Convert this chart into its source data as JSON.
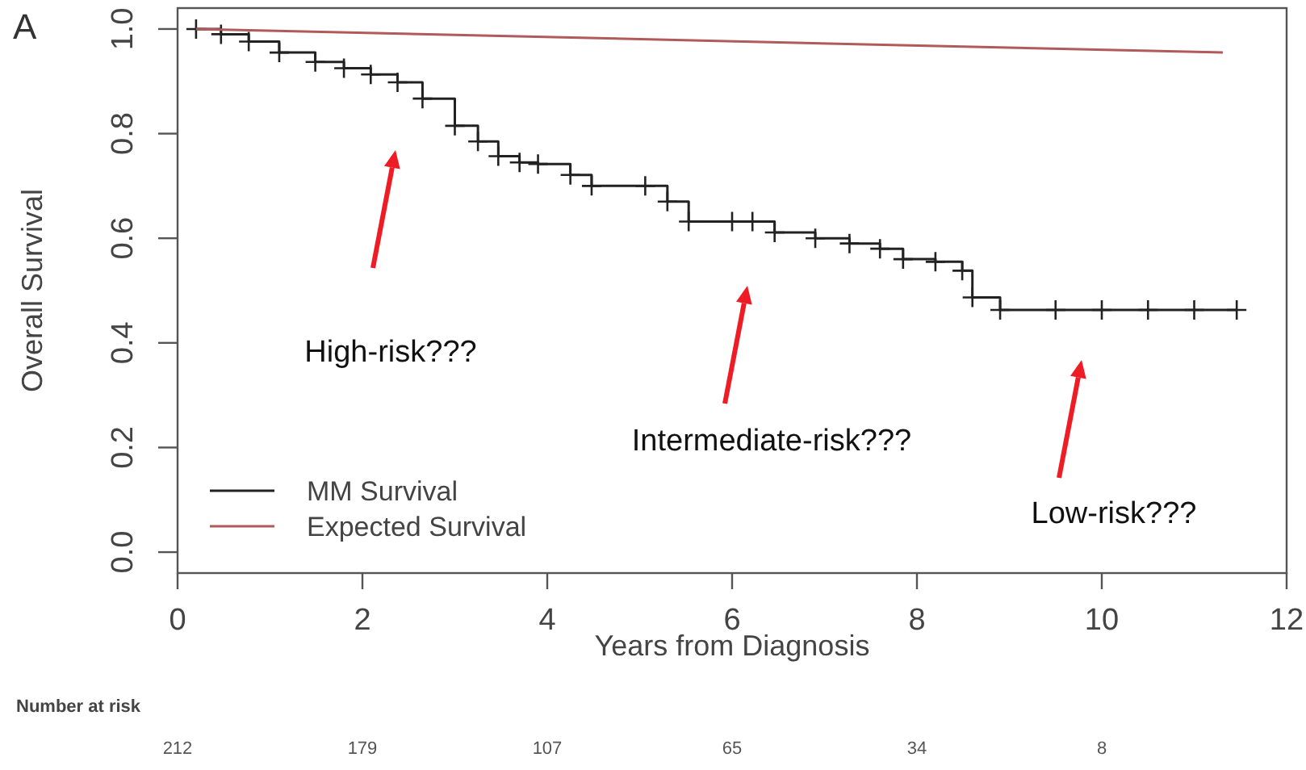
{
  "chart_data": {
    "type": "step",
    "xlabel": "Years from Diagnosis",
    "ylabel": "Overall Survival",
    "xlim": [
      0,
      12
    ],
    "xticks": [
      0,
      2,
      4,
      6,
      8,
      10,
      12
    ],
    "ylim": [
      -0.04,
      1.04
    ],
    "yticks": [
      {
        "value": 0,
        "label": "0.0"
      },
      {
        "value": 0.2,
        "label": "0.2"
      },
      {
        "value": 0.4,
        "label": "0.4"
      },
      {
        "value": 0.6,
        "label": "0.6"
      },
      {
        "value": 0.8,
        "label": "0.8"
      },
      {
        "value": 1,
        "label": "1.0"
      }
    ],
    "grid": false,
    "legend": "bottom left",
    "line_style": "solid",
    "series": [
      {
        "name": "MM Survival",
        "marker": "cross",
        "color": "#222222",
        "x": [
          0.2,
          0.47,
          0.77,
          1.1,
          1.49,
          1.8,
          2.09,
          2.38,
          2.65,
          3.0,
          3.25,
          3.47,
          3.7,
          3.9,
          4.25,
          4.48,
          5.06,
          5.3,
          5.53,
          6.0,
          6.22,
          6.46,
          6.9,
          7.27,
          7.6,
          7.85,
          8.2,
          8.49,
          8.6,
          8.9,
          9.5,
          10.0,
          10.5,
          11.0,
          11.46
        ],
        "values": [
          1.0,
          0.99,
          0.976,
          0.955,
          0.937,
          0.925,
          0.913,
          0.898,
          0.867,
          0.815,
          0.785,
          0.757,
          0.745,
          0.742,
          0.721,
          0.7,
          0.7,
          0.67,
          0.632,
          0.632,
          0.632,
          0.611,
          0.6,
          0.59,
          0.58,
          0.56,
          0.555,
          0.538,
          0.487,
          0.463,
          0.463,
          0.463,
          0.463,
          0.463,
          0.463
        ]
      },
      {
        "name": "Expected Survival",
        "type": "line",
        "color": "#b05a5a",
        "x": [
          0.2,
          11.31
        ],
        "values": [
          1.0,
          0.955
        ]
      }
    ],
    "annotations": [
      "A",
      "High-risk???",
      "Intermediate-risk???",
      "Low-risk???",
      "Number at risk",
      "212",
      "179",
      "107",
      "65",
      "34",
      "8"
    ]
  }
}
